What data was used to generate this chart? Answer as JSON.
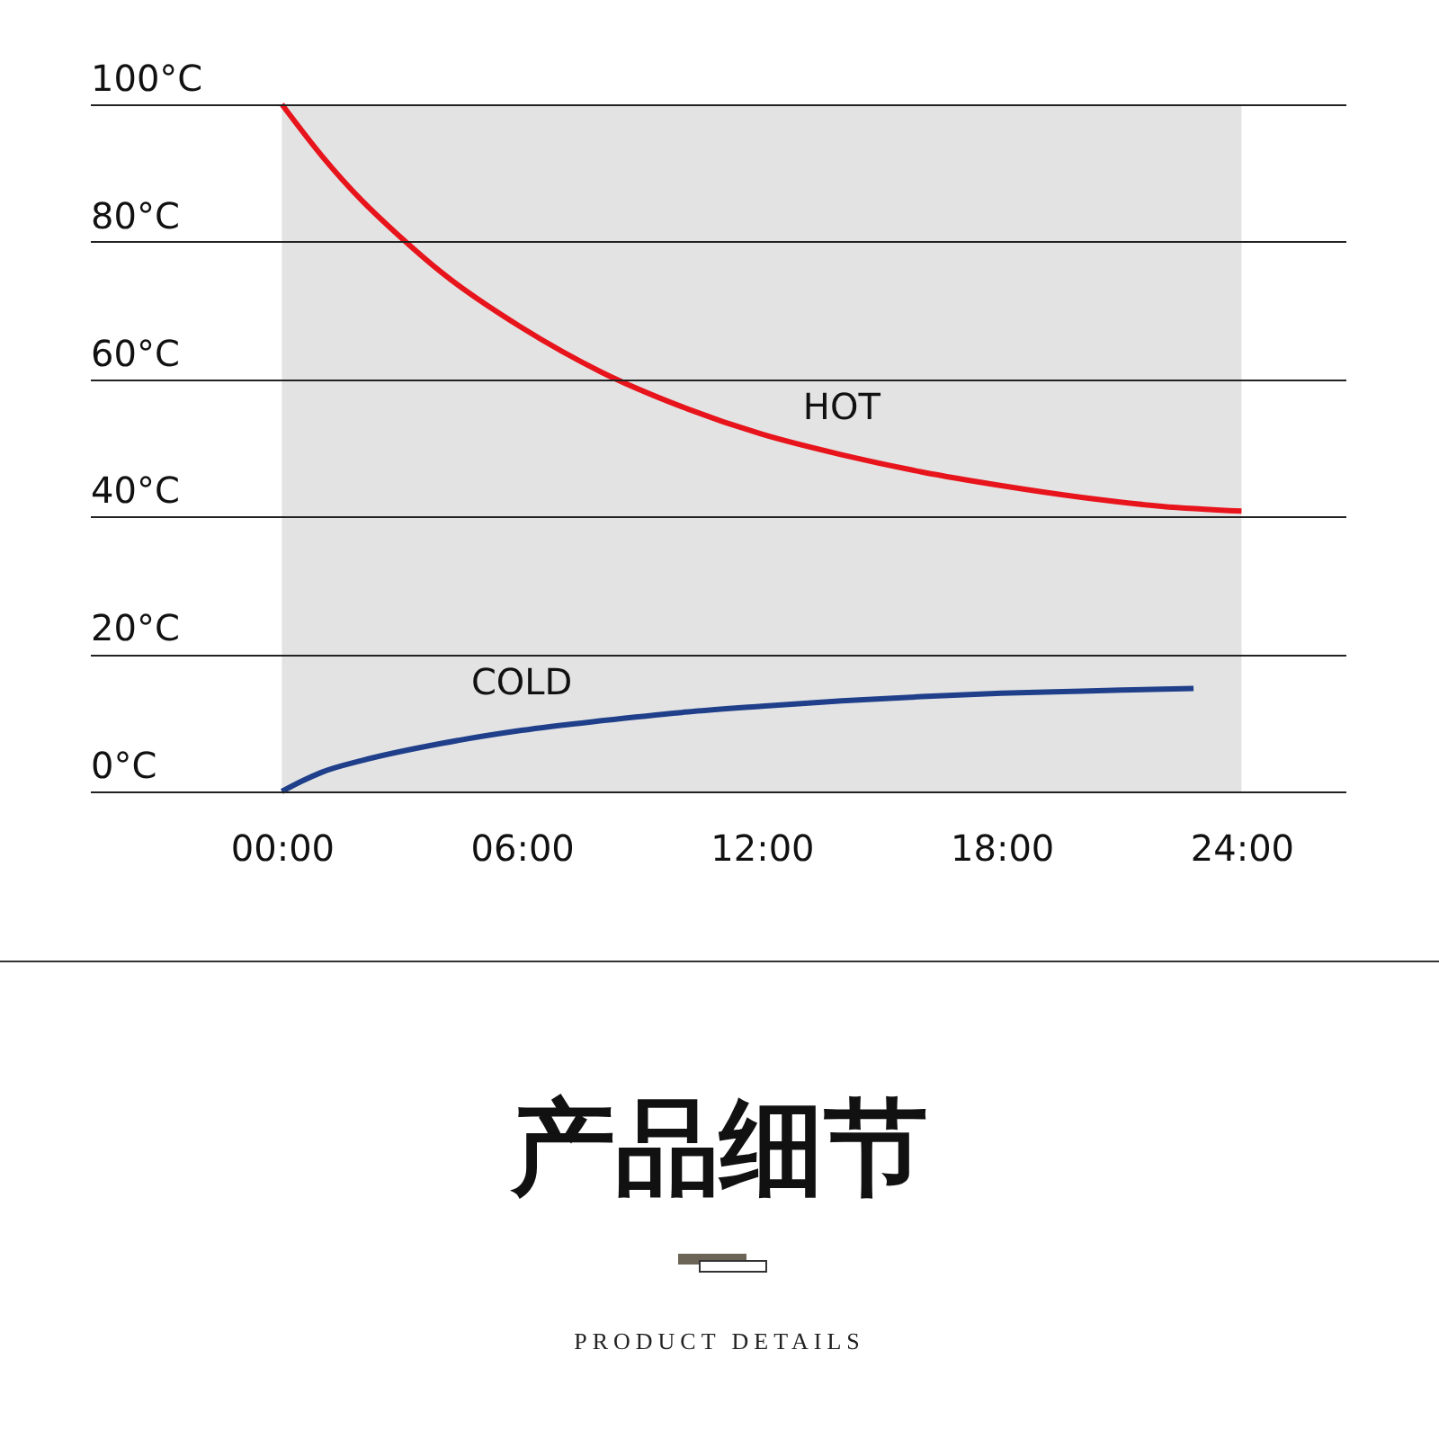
{
  "chart_data": {
    "type": "line",
    "xlim": [
      -4.8,
      26.6
    ],
    "ylim": [
      0,
      100
    ],
    "xticks": [
      {
        "value": 0,
        "label": "00:00"
      },
      {
        "value": 6,
        "label": "06:00"
      },
      {
        "value": 12,
        "label": "12:00"
      },
      {
        "value": 18,
        "label": "18:00"
      },
      {
        "value": 24,
        "label": "24:00"
      }
    ],
    "yticks": [
      {
        "value": 0,
        "label": "0°C"
      },
      {
        "value": 20,
        "label": "20°C"
      },
      {
        "value": 40,
        "label": "40°C"
      },
      {
        "value": 60,
        "label": "60°C"
      },
      {
        "value": 80,
        "label": "80°C"
      },
      {
        "value": 100,
        "label": "100°C"
      }
    ],
    "grid": "y",
    "series": [
      {
        "name": "HOT",
        "color": "#e8141c",
        "x": [
          0,
          1,
          2,
          3,
          4,
          6,
          8,
          10,
          12,
          14,
          16,
          18,
          20,
          22,
          24
        ],
        "values": [
          100,
          92.5,
          86,
          80.5,
          75.5,
          67.5,
          61,
          56,
          52,
          49,
          46.5,
          44.5,
          42.8,
          41.5,
          40.8
        ]
      },
      {
        "name": "COLD",
        "color": "#1f3f8a",
        "x": [
          0,
          0.5,
          1,
          2,
          4,
          6,
          8,
          10,
          12,
          14,
          16,
          18,
          20,
          22.8
        ],
        "values": [
          0,
          1.5,
          2.8,
          4.5,
          7,
          8.9,
          10.3,
          11.5,
          12.4,
          13.2,
          13.8,
          14.3,
          14.6,
          15
        ]
      }
    ],
    "bands": [
      {
        "axis": "x",
        "from": 0,
        "to": 24,
        "color": "#e3e3e3"
      }
    ],
    "annotations": [
      "产品细节",
      "PRODUCT DETAILS"
    ]
  }
}
